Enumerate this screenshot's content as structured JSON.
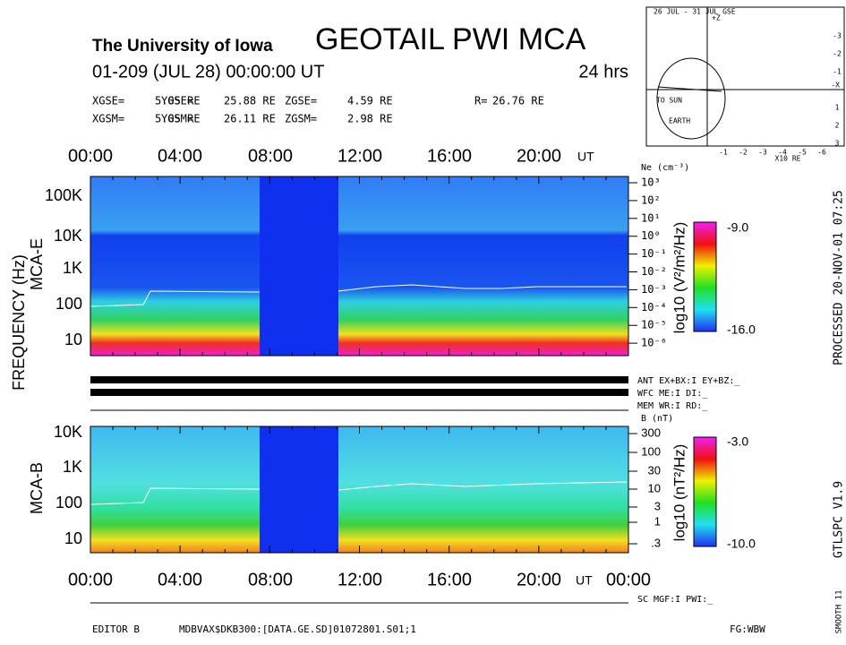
{
  "header": {
    "institution": "The University of Iowa",
    "title": "GEOTAIL PWI MCA",
    "date": "01-209 (JUL 28) 00:00:00 UT",
    "duration": "24 hrs",
    "coords": [
      {
        "label": "XGSE=",
        "value": "5.05 RE"
      },
      {
        "label": "YGSE=",
        "value": "25.88 RE"
      },
      {
        "label": "ZGSE=",
        "value": "4.59 RE"
      },
      {
        "label": "R=",
        "value": "26.76 RE"
      },
      {
        "label": "XGSM=",
        "value": "5.05 RE"
      },
      {
        "label": "YGSM=",
        "value": "26.11 RE"
      },
      {
        "label": "ZGSM=",
        "value": "2.98 RE"
      }
    ]
  },
  "orbit": {
    "title": "26 JUL - 31 JUL GSE",
    "sun": "TO SUN",
    "earth": "EARTH",
    "unit": "X10 RE",
    "x_ticks": [
      "-1",
      "-2",
      "-3",
      "-4",
      "-5",
      "-6"
    ],
    "y_ticks": [
      "-3",
      "-2",
      "-1",
      "1",
      "2",
      "3"
    ],
    "axis_x": "-X",
    "axis_z": "+Z"
  },
  "time_axis": {
    "top": [
      "00:00",
      "04:00",
      "08:00",
      "12:00",
      "16:00",
      "20:00"
    ],
    "bottom": [
      "00:00",
      "04:00",
      "08:00",
      "12:00",
      "16:00",
      "20:00",
      "00:00"
    ],
    "unit": "UT"
  },
  "mca_e": {
    "label": "MCA-E",
    "freq_ticks": [
      "100K",
      "10K",
      "1K",
      "100",
      "10"
    ],
    "ne_title": "Ne (cm⁻³)",
    "ne_ticks": [
      "10³",
      "10²",
      "10¹",
      "10⁰",
      "10⁻¹",
      "10⁻²",
      "10⁻³",
      "10⁻⁴",
      "10⁻⁵",
      "10⁻⁶"
    ],
    "colorbar_label": "log10 (V²/m²/Hz)",
    "colorbar_max": "-9.0",
    "colorbar_min": "-16.0"
  },
  "frequency_label": "FREQUENCY (Hz)",
  "status": [
    "ANT EX+BX:I EY+BZ:_",
    "WFC ME:I   DI:_",
    "MEM WR:I   RD:_"
  ],
  "mca_b": {
    "label": "MCA-B",
    "freq_ticks": [
      "10K",
      "1K",
      "100",
      "10"
    ],
    "b_title": "B (nT)",
    "b_ticks": [
      "300",
      "100",
      "30",
      "10",
      "3",
      "1",
      ".3"
    ],
    "colorbar_label": "log10 (nT²/Hz)",
    "colorbar_max": "-3.0",
    "colorbar_min": "-10.0"
  },
  "side": {
    "processed": "PROCESSED 20-NOV-01 07:25",
    "version": "GTLSPC V1.9",
    "smooth": "SMOOTH 11"
  },
  "footer": {
    "sc": "SC MGF:I  PWI:_",
    "editor": "EDITOR B",
    "file": "MDBVAX$DKB300:[DATA.GE.SD]01072801.S01;1",
    "fg": "FG:WBW"
  }
}
